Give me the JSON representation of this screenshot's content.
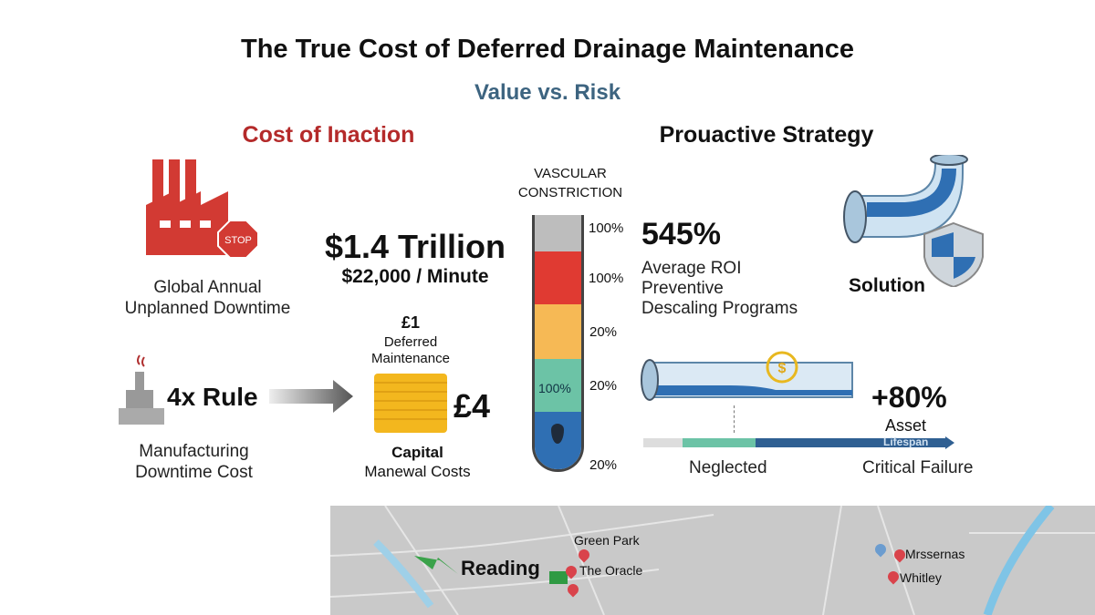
{
  "title": "The True Cost of Deferred Drainage Maintenance",
  "subtitle": "Value vs. Risk",
  "left": {
    "heading": "Cost of Inaction",
    "downtime": {
      "line1": "Global Annual",
      "line2": "Unplanned Downtime",
      "stop_sign": "STOP"
    },
    "trillion": {
      "value": "$1.4 Trillion",
      "rate": "$22,000 / Minute"
    },
    "rule": {
      "label": "4x Rule",
      "line1": "Manufacturing",
      "line2": "Downtime Cost"
    },
    "deferred": {
      "value": "£1",
      "line1": "Deferred",
      "line2": "Maintenance"
    },
    "capital": {
      "value": "£4",
      "line1": "Capital",
      "line2": "Manewal Costs"
    }
  },
  "gauge": {
    "title1": "VASCULAR",
    "title2": "CONSTRICTION",
    "inner_label": "100%",
    "labels": [
      "100%",
      "100%",
      "20%",
      "20%",
      "20%"
    ],
    "colors": [
      "#bdbdbd",
      "#e03a32",
      "#f6b955",
      "#6cc3a6",
      "#2f6fb3"
    ]
  },
  "right": {
    "heading": "Prouactive Strategy",
    "roi": {
      "value": "545%",
      "line1": "Average ROI",
      "line2": "Preventive",
      "line3": "Descaling Programs"
    },
    "solution": "Solution",
    "lifespan": {
      "value": "+80%",
      "line1": "Asset",
      "line2": "Lifespan",
      "left": "Neglected",
      "right": "Critical Failure",
      "coin": "$"
    }
  },
  "map": {
    "city": "Reading",
    "places": [
      "Green Park",
      "The Oracle",
      "Mrssernas",
      "Whitley"
    ]
  }
}
